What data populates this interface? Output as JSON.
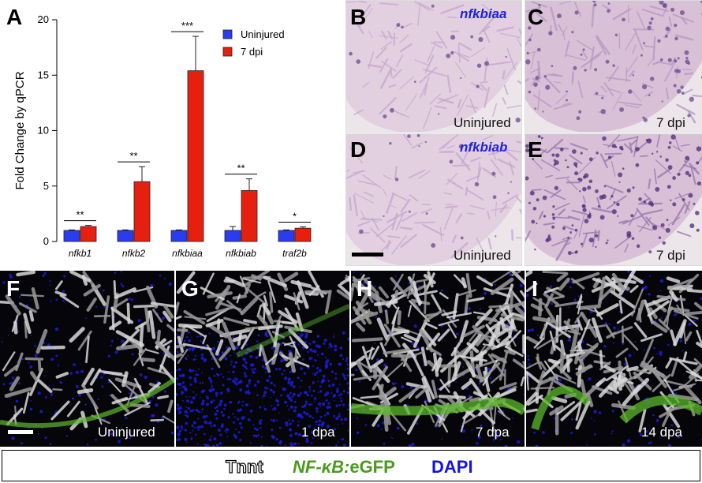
{
  "panels": {
    "a": "A",
    "b": "B",
    "c": "C",
    "d": "D",
    "e": "E",
    "f": "F",
    "g": "G",
    "h": "H",
    "i": "I"
  },
  "chart_data": {
    "type": "bar",
    "ylabel": "Fold Change by qPCR",
    "ylim": [
      0,
      20
    ],
    "yticks": [
      0,
      5,
      10,
      15,
      20
    ],
    "categories": [
      "nfkb1",
      "nfkb2",
      "nfkbiaa",
      "nfkbiab",
      "traf2b"
    ],
    "series": [
      {
        "name": "Uninjured",
        "color": "#2a3cf0",
        "values": [
          1.0,
          1.0,
          1.0,
          1.0,
          1.0
        ],
        "errors": [
          0.05,
          0.05,
          0.05,
          0.35,
          0.05
        ]
      },
      {
        "name": "7 dpi",
        "color": "#e6200f",
        "values": [
          1.35,
          5.4,
          15.4,
          4.6,
          1.2
        ],
        "errors": [
          0.1,
          1.35,
          3.1,
          1.05,
          0.12
        ]
      }
    ],
    "significance": [
      "**",
      "**",
      "***",
      "**",
      "*"
    ],
    "legend_position": "top-right",
    "grid": false
  },
  "histo": {
    "b": {
      "probe": "nfkbiaa",
      "label": "Uninjured"
    },
    "c": {
      "label": "7 dpi"
    },
    "d": {
      "probe": "nfkbiab",
      "label": "Uninjured"
    },
    "e": {
      "label": "7 dpi"
    }
  },
  "fluo": {
    "f": {
      "label": "Uninjured"
    },
    "g": {
      "label": "1 dpa"
    },
    "h": {
      "label": "7 dpa"
    },
    "i": {
      "label": "14 dpa"
    }
  },
  "legend": {
    "tnnt": "Tnnt",
    "nfkb": "NF-κB:",
    "egfp": "eGFP",
    "dapi": "DAPI"
  },
  "colors": {
    "uninjured": "#2a3cf0",
    "dpi7": "#e6200f",
    "gfp": "#4a9a1e",
    "dapi": "#1414dd",
    "probe": "#2222dd"
  }
}
